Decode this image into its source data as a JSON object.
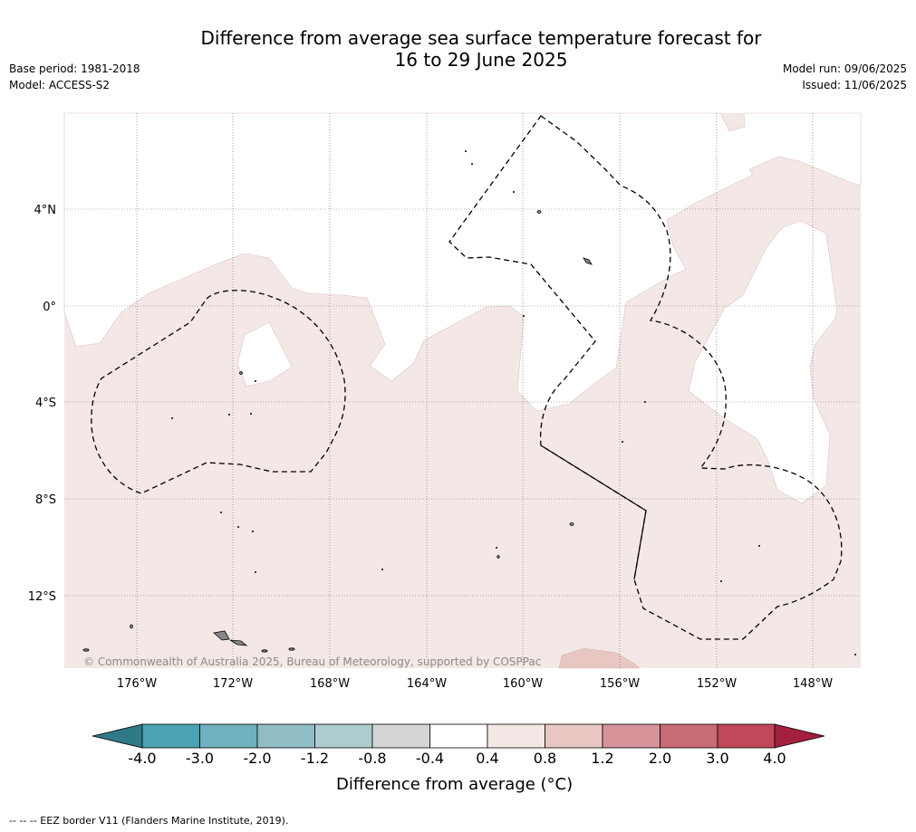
{
  "title": {
    "line1": "Difference from average sea surface temperature forecast for",
    "line2": "16 to 29 June 2025"
  },
  "meta": {
    "base_period": "Base period: 1981-2018",
    "model": "Model: ACCESS-S2",
    "model_run": "Model run: 09/06/2025",
    "issued": "Issued: 11/06/2025"
  },
  "map": {
    "latitude_labels": [
      "4°N",
      "0°",
      "4°S",
      "8°S",
      "12°S"
    ],
    "longitude_labels": [
      "176°W",
      "172°W",
      "168°W",
      "164°W",
      "160°W",
      "156°W",
      "152°W",
      "148°W"
    ],
    "copyright": "© Commonwealth of Australia 2025, Bureau of Meteorology, supported by COSPPac",
    "colors": {
      "ocean_base": "#f4e8e6",
      "near_average": "#ffffff",
      "warm_patch": "#e8c6c2",
      "land": "#8c8c8c",
      "eez_line": "#000000",
      "grid": "#555555"
    }
  },
  "colorbar": {
    "title": "Difference from average (°C)",
    "tick_labels": [
      "-4.0",
      "-3.0",
      "-2.0",
      "-1.2",
      "-0.8",
      "-0.4",
      "0.4",
      "0.8",
      "1.2",
      "2.0",
      "3.0",
      "4.0"
    ],
    "colors": [
      "#2e7a86",
      "#4aa3b3",
      "#6fb1bf",
      "#90bcc6",
      "#aecbd0",
      "#d4d6d6",
      "#ffffff",
      "#f4e8e6",
      "#e8c6c2",
      "#d6939a",
      "#c86b75",
      "#c04858",
      "#a31f3c"
    ]
  },
  "footnote": "--  --  -- EEZ border V11 (Flanders Marine Institute, 2019)."
}
